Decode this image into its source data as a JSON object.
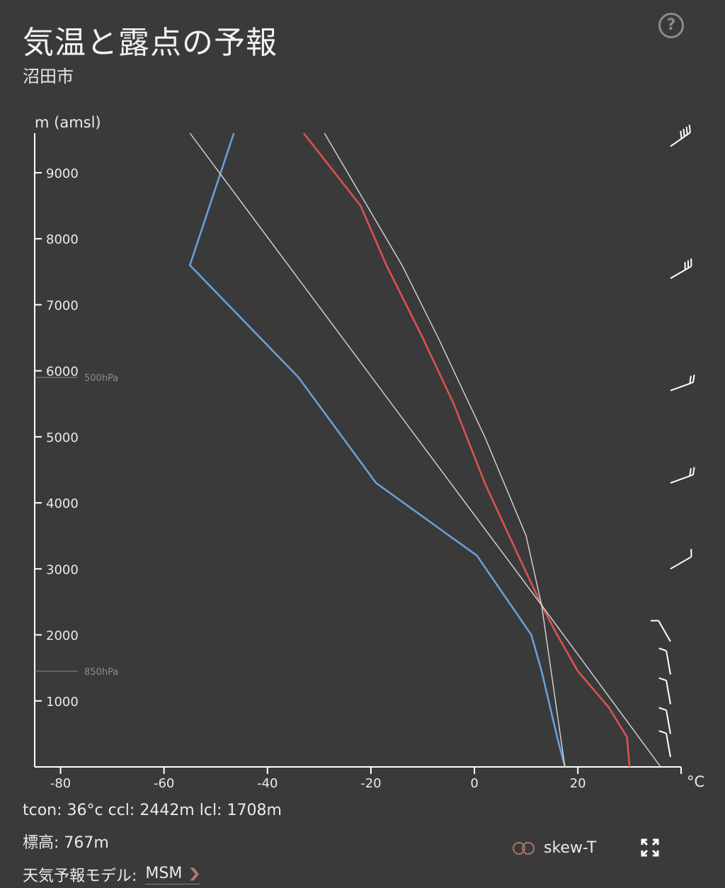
{
  "header": {
    "title": "気温と露点の予報",
    "subtitle": "沼田市",
    "help_icon": "?"
  },
  "chart_data": {
    "type": "line",
    "ylabel": "m (amsl)",
    "xlabel": "°C",
    "xlim": [
      -85,
      39
    ],
    "ylim": [
      0,
      9600
    ],
    "x_ticks": [
      -80,
      -60,
      -40,
      -20,
      0,
      20
    ],
    "y_ticks": [
      1000,
      2000,
      3000,
      4000,
      5000,
      6000,
      7000,
      8000,
      9000
    ],
    "pressure_levels": [
      {
        "label": "850hPa",
        "height": 1450
      },
      {
        "label": "500hPa",
        "height": 5900
      }
    ],
    "series": [
      {
        "role": "temperature",
        "color": "#d9534f",
        "points": [
          [
            30,
            0
          ],
          [
            29.5,
            450
          ],
          [
            26,
            900
          ],
          [
            20,
            1450
          ],
          [
            16,
            2000
          ],
          [
            13,
            2450
          ],
          [
            8.5,
            3200
          ],
          [
            2,
            4300
          ],
          [
            -4,
            5500
          ],
          [
            -10,
            6500
          ],
          [
            -17,
            7600
          ],
          [
            -22,
            8500
          ],
          [
            -33,
            9600
          ]
        ]
      },
      {
        "role": "dewpoint",
        "color": "#6a9fd8",
        "points": [
          [
            17.5,
            0
          ],
          [
            16,
            450
          ],
          [
            13,
            1450
          ],
          [
            11,
            2000
          ],
          [
            0.5,
            3200
          ],
          [
            -19,
            4300
          ],
          [
            -34,
            5900
          ],
          [
            -55,
            7600
          ],
          [
            -46.5,
            9600
          ]
        ]
      },
      {
        "role": "reference",
        "color": "#d8d8d8",
        "points": [
          [
            36,
            0
          ],
          [
            13,
            2450
          ],
          [
            -55,
            9600
          ]
        ]
      },
      {
        "role": "reference",
        "color": "#d8d8d8",
        "points": [
          [
            17.5,
            0
          ],
          [
            13,
            2450
          ],
          [
            10,
            3500
          ],
          [
            2,
            5000
          ],
          [
            -7,
            6500
          ],
          [
            -14,
            7600
          ],
          [
            -29,
            9600
          ]
        ]
      }
    ],
    "wind_barbs": [
      {
        "height": 150,
        "dir": 170,
        "barbs": 1
      },
      {
        "height": 500,
        "dir": 170,
        "barbs": 1
      },
      {
        "height": 950,
        "dir": 170,
        "barbs": 1
      },
      {
        "height": 1400,
        "dir": 170,
        "barbs": 1
      },
      {
        "height": 1900,
        "dir": 150,
        "barbs": 1
      },
      {
        "height": 3000,
        "dir": 240,
        "barbs": 1
      },
      {
        "height": 4300,
        "dir": 250,
        "barbs": 2
      },
      {
        "height": 5700,
        "dir": 250,
        "barbs": 2
      },
      {
        "height": 7400,
        "dir": 240,
        "barbs": 3
      },
      {
        "height": 9400,
        "dir": 235,
        "barbs": 4
      }
    ]
  },
  "footer": {
    "stats": "tcon: 36°c ccl: 2442m lcl: 1708m",
    "elevation": "標高: 767m",
    "model_label": "天気予報モデル:",
    "model_value": "MSM",
    "skew_label": "skew-T"
  },
  "colors": {
    "background": "#3a3a3a",
    "temperature": "#d9534f",
    "dewpoint": "#6a9fd8",
    "accent": "#b07a70"
  }
}
